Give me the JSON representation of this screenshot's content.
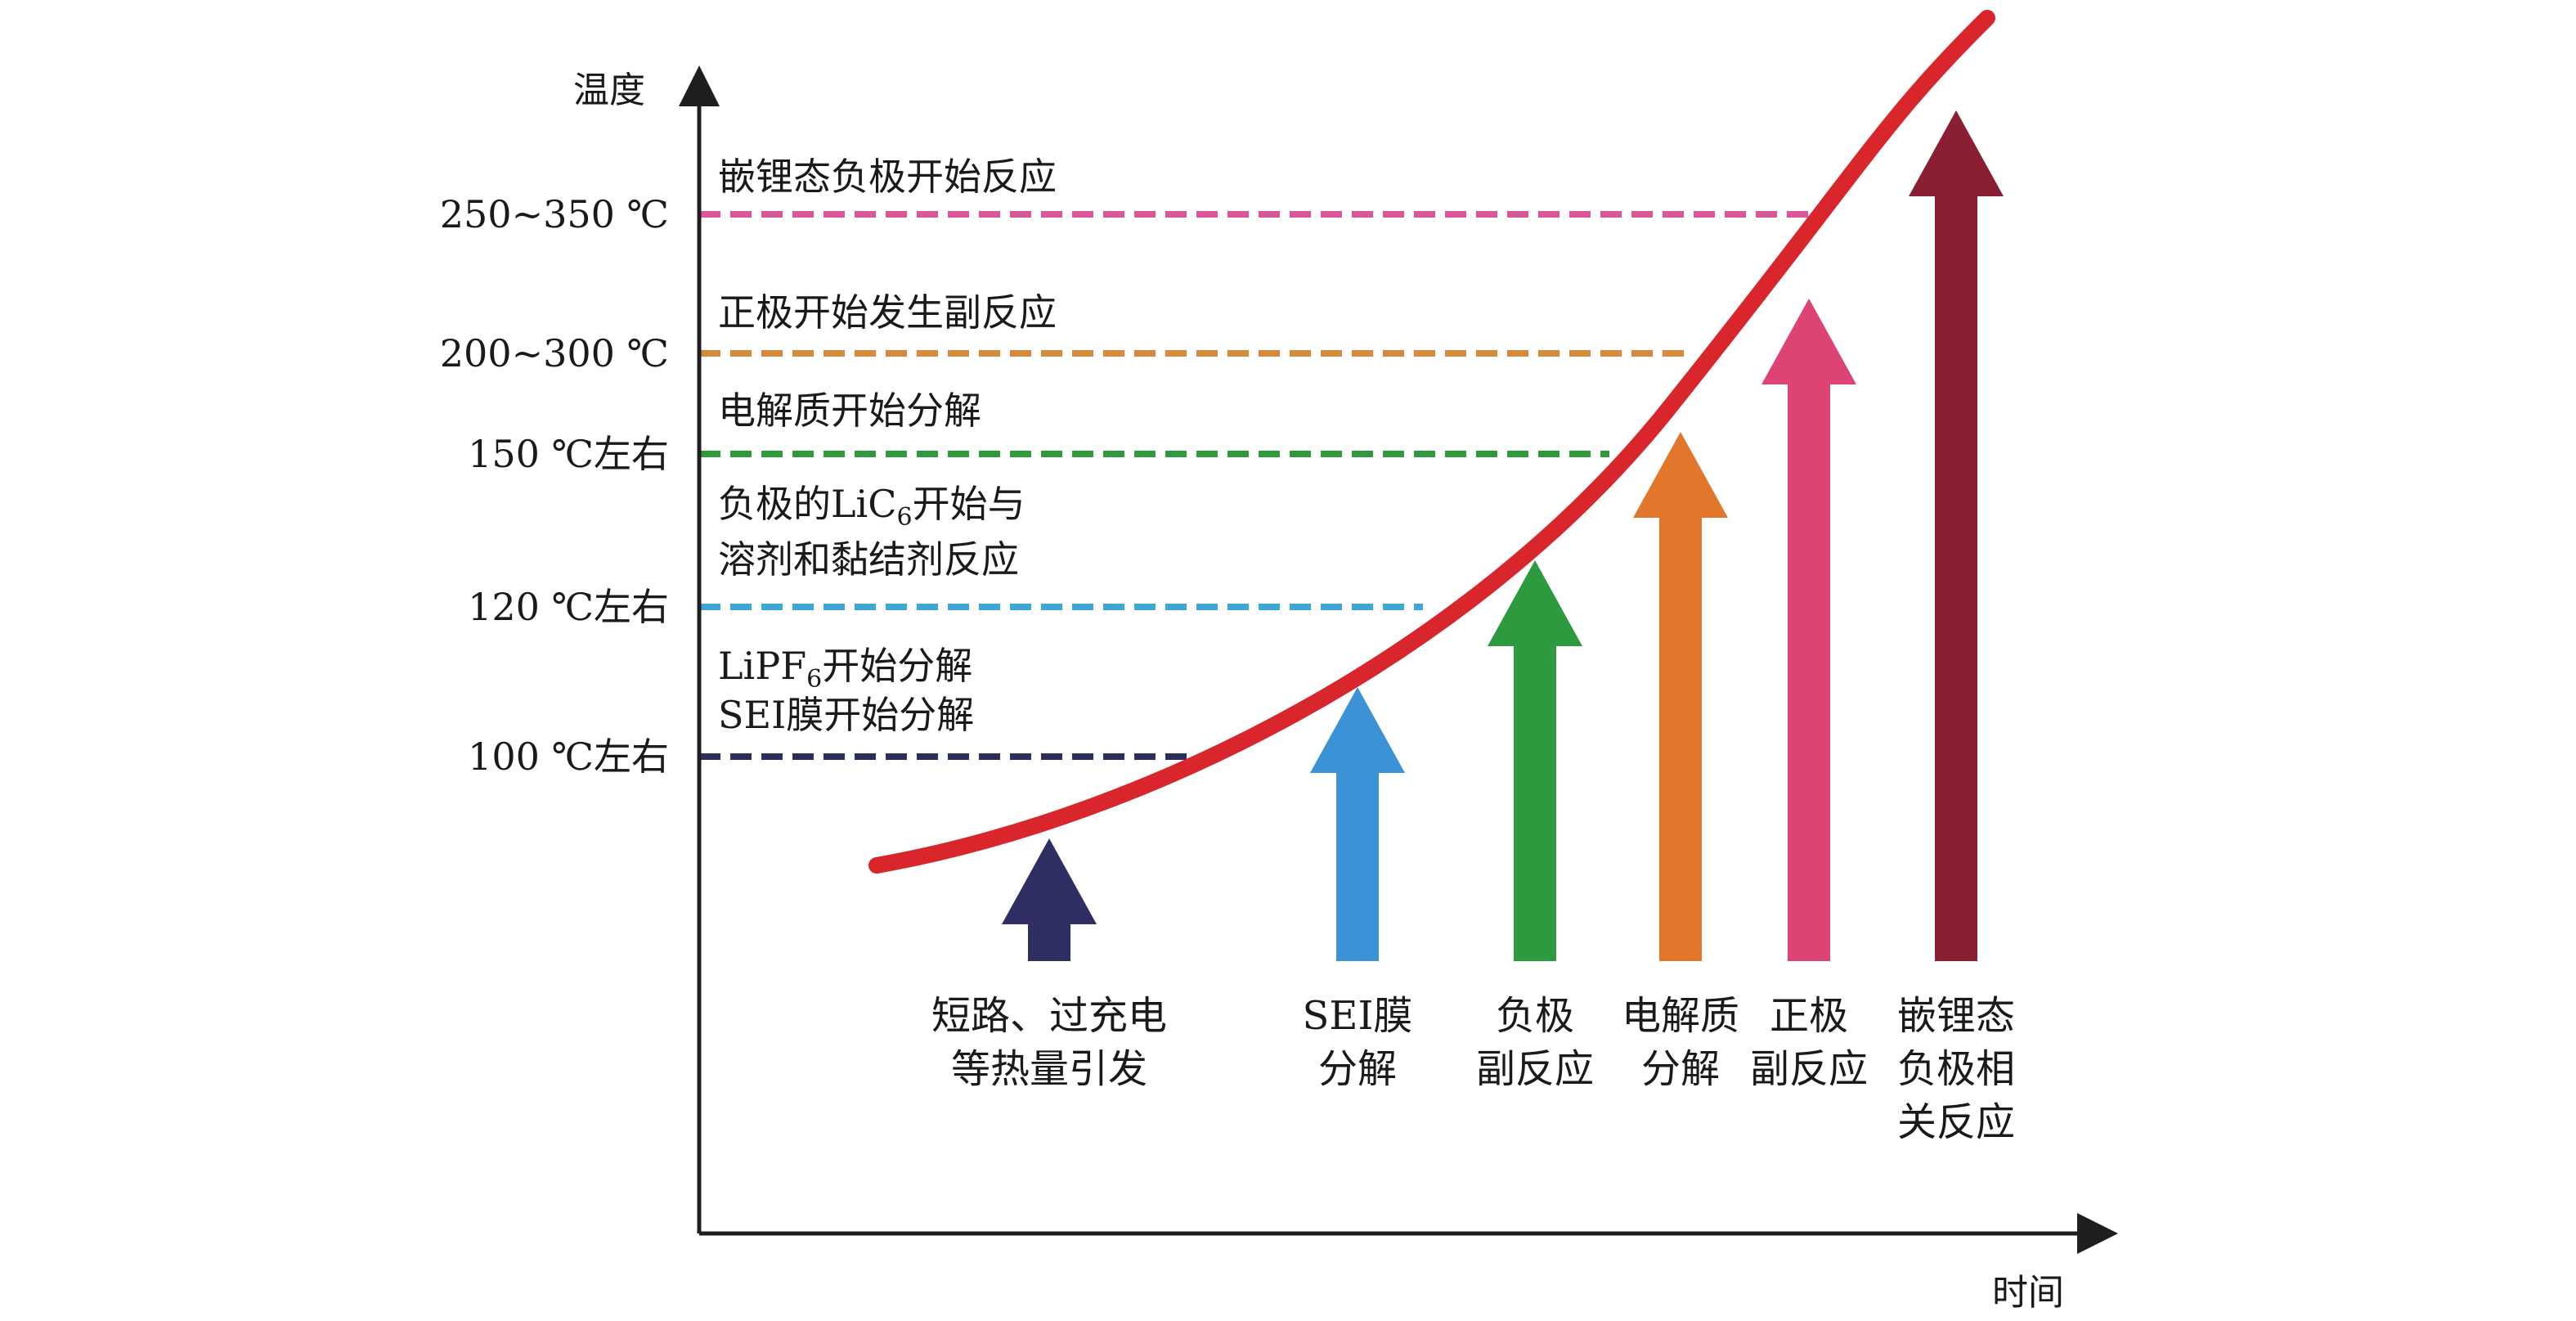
{
  "axes": {
    "y_label": "温度",
    "x_label": "时间"
  },
  "levels": [
    {
      "temperature": "250~350 ℃",
      "event_lines": [
        [
          {
            "t": "嵌锂态负极开始反应"
          }
        ]
      ],
      "color": "#d9579a"
    },
    {
      "temperature": "200~300 ℃",
      "event_lines": [
        [
          {
            "t": "正极开始发生副反应"
          }
        ]
      ],
      "color": "#d6893a"
    },
    {
      "temperature": "150 ℃左右",
      "event_lines": [
        [
          {
            "t": "电解质开始分解"
          }
        ]
      ],
      "color": "#2f9a3c"
    },
    {
      "temperature": "120 ℃左右",
      "event_lines": [
        [
          {
            "t": "负极的LiC"
          },
          {
            "t": "6",
            "sub": true
          },
          {
            "t": "开始与"
          }
        ],
        [
          {
            "t": "溶剂和黏结剂反应"
          }
        ]
      ],
      "color": "#3ea6d6"
    },
    {
      "temperature": "100 ℃左右",
      "event_lines": [
        [
          {
            "t": "LiPF"
          },
          {
            "t": "6",
            "sub": true
          },
          {
            "t": "开始分解"
          }
        ],
        [
          {
            "t": "SEI膜开始分解"
          }
        ]
      ],
      "color": "#2c2e5e"
    }
  ],
  "reactions": [
    {
      "lines": [
        "短路、过充电",
        "等热量引发"
      ],
      "color": "#2e2e63"
    },
    {
      "lines": [
        "SEI膜",
        "分解"
      ],
      "color": "#3b93d6"
    },
    {
      "lines": [
        "负极",
        "副反应"
      ],
      "color": "#2e9a3f"
    },
    {
      "lines": [
        "电解质",
        "分解"
      ],
      "color": "#e2762a"
    },
    {
      "lines": [
        "正极",
        "副反应"
      ],
      "color": "#dd4473"
    },
    {
      "lines": [
        "嵌锂态",
        "负极相",
        "关反应"
      ],
      "color": "#8a1f33"
    }
  ],
  "colors": {
    "curve": "#d8262c",
    "axis": "#1f1f1f"
  }
}
